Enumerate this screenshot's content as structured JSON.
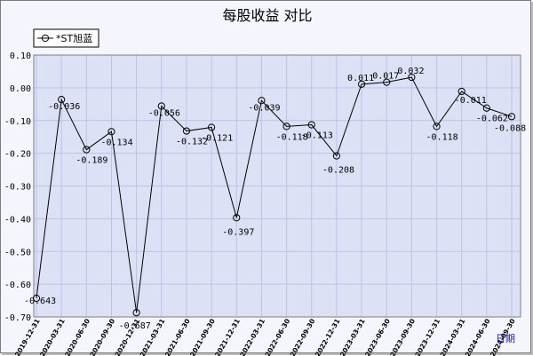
{
  "chart_data": {
    "type": "line",
    "title": "每股收益 对比",
    "xlabel": "日期",
    "ylabel": "",
    "ylim": [
      -0.7,
      0.1
    ],
    "yticks": [
      "0.10",
      "0.00",
      "-0.10",
      "-0.20",
      "-0.30",
      "-0.40",
      "-0.50",
      "-0.60",
      "-0.70"
    ],
    "grid": true,
    "legend_position": "top-left",
    "colors": {
      "line": "#000000",
      "plot_bg": "#dde1f5",
      "grid": "#bcc3e6"
    },
    "categories": [
      "2019-12-31",
      "2020-03-31",
      "2020-06-30",
      "2020-09-30",
      "2020-12-31",
      "2021-03-31",
      "2021-06-30",
      "2021-09-30",
      "2021-12-31",
      "2022-03-31",
      "2022-06-30",
      "2022-09-30",
      "2022-12-31",
      "2023-03-31",
      "2023-06-30",
      "2023-09-30",
      "2023-12-31",
      "2024-03-31",
      "2024-06-30",
      "2024-09-30"
    ],
    "series": [
      {
        "name": "*ST旭蓝",
        "values": [
          -0.643,
          -0.036,
          -0.189,
          -0.134,
          -0.687,
          -0.056,
          -0.132,
          -0.121,
          -0.397,
          -0.039,
          -0.118,
          -0.113,
          -0.208,
          0.011,
          0.017,
          0.032,
          -0.118,
          -0.011,
          -0.062,
          -0.088
        ],
        "labels": [
          "-0.643",
          "-0.036",
          "-0.189",
          "-0.134",
          "-0.687",
          "-0.056",
          "-0.132",
          "-0.121",
          "-0.397",
          "-0.039",
          "-0.118",
          "-0.113",
          "-0.208",
          "0.011",
          "0.017",
          "0.032",
          "-0.118",
          "-0.011",
          "-0.062",
          "-0.088"
        ]
      }
    ]
  }
}
